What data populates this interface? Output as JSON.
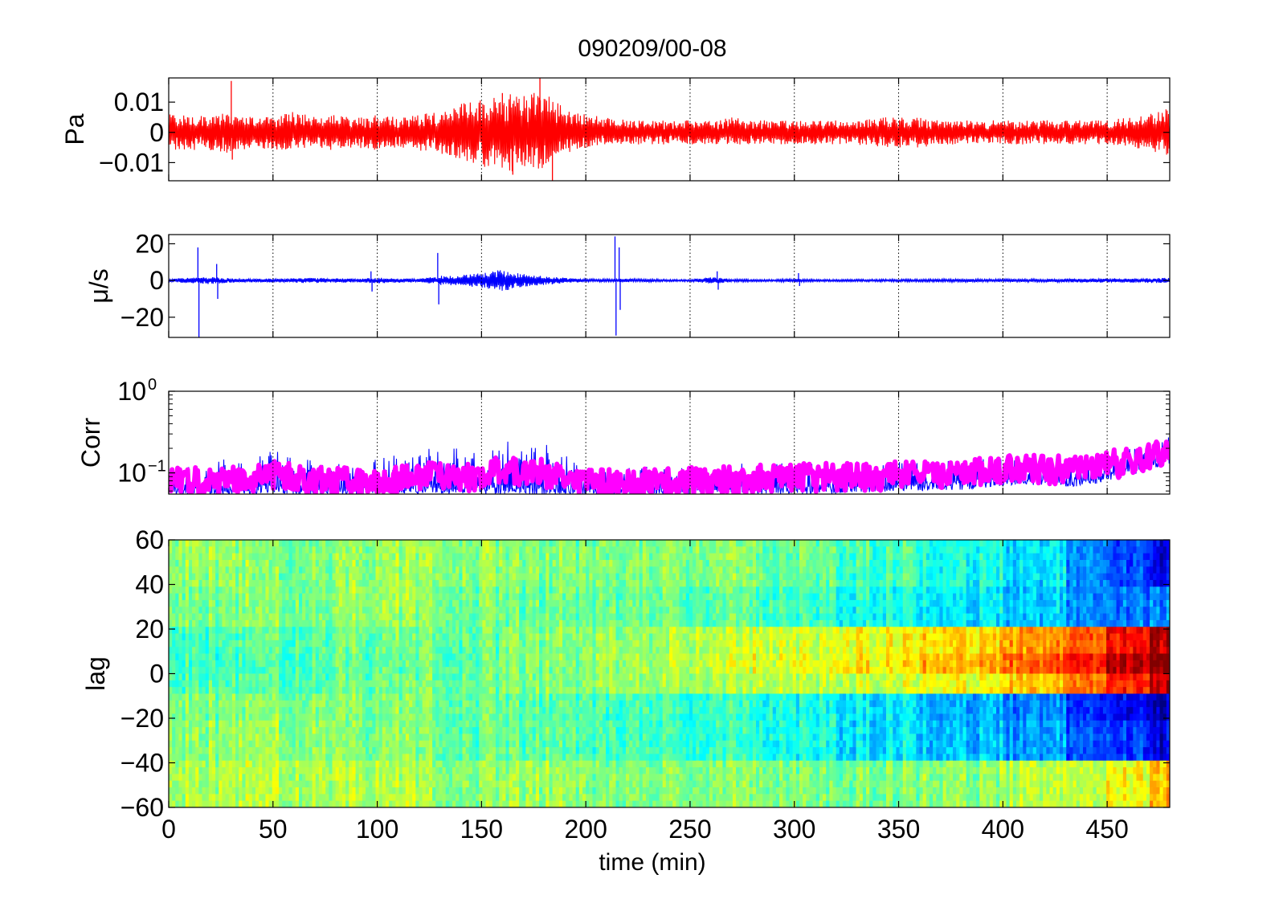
{
  "figure": {
    "title": "090209/00-08",
    "xlabel": "time (min)"
  },
  "chart_data": [
    {
      "type": "line",
      "ylabel": "Pa",
      "xlim": [
        0,
        480
      ],
      "ylim": [
        -0.016,
        0.018
      ],
      "xticks": [
        0,
        50,
        100,
        150,
        200,
        250,
        300,
        350,
        400,
        450
      ],
      "yticks": [
        {
          "value": 0.01,
          "label": "0.01"
        },
        {
          "value": 0,
          "label": "0"
        },
        {
          "value": -0.01,
          "label": "−0.01"
        }
      ],
      "grid": "x-dotted",
      "series": [
        {
          "color": "#ff0000",
          "x": [
            0,
            10,
            20,
            30,
            40,
            50,
            60,
            70,
            80,
            90,
            100,
            110,
            120,
            130,
            140,
            150,
            160,
            170,
            180,
            190,
            200,
            210,
            220,
            230,
            240,
            250,
            260,
            270,
            280,
            290,
            300,
            310,
            320,
            330,
            340,
            350,
            360,
            370,
            380,
            390,
            400,
            410,
            420,
            430,
            440,
            450,
            460,
            470,
            480
          ],
          "y_upper": [
            0.006,
            0.006,
            0.005,
            0.007,
            0.005,
            0.006,
            0.007,
            0.005,
            0.006,
            0.005,
            0.006,
            0.005,
            0.006,
            0.007,
            0.01,
            0.011,
            0.013,
            0.012,
            0.014,
            0.008,
            0.006,
            0.005,
            0.004,
            0.004,
            0.004,
            0.004,
            0.004,
            0.005,
            0.004,
            0.004,
            0.004,
            0.004,
            0.004,
            0.004,
            0.005,
            0.005,
            0.005,
            0.004,
            0.004,
            0.004,
            0.004,
            0.004,
            0.004,
            0.004,
            0.004,
            0.004,
            0.005,
            0.006,
            0.008
          ],
          "y_lower": [
            -0.006,
            -0.006,
            -0.006,
            -0.007,
            -0.005,
            -0.006,
            -0.006,
            -0.005,
            -0.006,
            -0.005,
            -0.006,
            -0.005,
            -0.006,
            -0.007,
            -0.009,
            -0.011,
            -0.014,
            -0.012,
            -0.012,
            -0.007,
            -0.005,
            -0.004,
            -0.004,
            -0.004,
            -0.004,
            -0.004,
            -0.004,
            -0.004,
            -0.004,
            -0.004,
            -0.004,
            -0.004,
            -0.004,
            -0.004,
            -0.005,
            -0.005,
            -0.005,
            -0.004,
            -0.004,
            -0.004,
            -0.004,
            -0.004,
            -0.004,
            -0.004,
            -0.004,
            -0.004,
            -0.005,
            -0.006,
            -0.008
          ],
          "spikes": [
            [
              30,
              0.017
            ],
            [
              30.5,
              -0.009
            ],
            [
              178,
              0.018
            ],
            [
              184,
              -0.016
            ],
            [
              165,
              -0.014
            ],
            [
              160,
              0.013
            ]
          ]
        }
      ]
    },
    {
      "type": "line",
      "ylabel": "μ/s",
      "xlim": [
        0,
        480
      ],
      "ylim": [
        -31,
        25
      ],
      "xticks": [
        0,
        50,
        100,
        150,
        200,
        250,
        300,
        350,
        400,
        450
      ],
      "yticks": [
        {
          "value": 20,
          "label": "20"
        },
        {
          "value": 0,
          "label": "0"
        },
        {
          "value": -20,
          "label": "−20"
        }
      ],
      "grid": "x-dotted",
      "series": [
        {
          "color": "#0000ff",
          "x": [
            0,
            10,
            20,
            30,
            40,
            50,
            60,
            70,
            80,
            90,
            100,
            110,
            120,
            130,
            140,
            150,
            160,
            170,
            180,
            190,
            200,
            210,
            220,
            230,
            240,
            250,
            260,
            270,
            280,
            290,
            300,
            310,
            320,
            330,
            340,
            350,
            360,
            370,
            380,
            390,
            400,
            410,
            420,
            430,
            440,
            450,
            460,
            470,
            480
          ],
          "y_upper": [
            1.0,
            1.5,
            2.0,
            1.2,
            1.0,
            1.0,
            1.2,
            1.5,
            1.2,
            1.0,
            1.5,
            1.2,
            1.0,
            2.5,
            3.0,
            4.0,
            6.0,
            3.5,
            2.5,
            1.5,
            0.8,
            0.8,
            1.0,
            0.8,
            0.6,
            0.6,
            2.0,
            0.8,
            0.6,
            0.6,
            1.0,
            0.6,
            0.6,
            0.6,
            0.7,
            0.7,
            0.7,
            0.8,
            0.8,
            0.8,
            0.8,
            0.8,
            0.9,
            1.0,
            1.1,
            1.2,
            1.2,
            1.3,
            1.5
          ],
          "y_lower": [
            -1.0,
            -1.5,
            -2.0,
            -1.2,
            -1.0,
            -1.0,
            -1.2,
            -1.5,
            -1.2,
            -1.0,
            -1.5,
            -1.2,
            -1.0,
            -2.5,
            -3.0,
            -4.0,
            -6.0,
            -3.5,
            -2.5,
            -1.5,
            -0.8,
            -0.8,
            -1.0,
            -0.8,
            -0.6,
            -0.6,
            -2.0,
            -0.8,
            -0.6,
            -0.6,
            -1.0,
            -0.6,
            -0.6,
            -0.6,
            -0.7,
            -0.7,
            -0.7,
            -0.8,
            -0.8,
            -0.8,
            -0.8,
            -0.8,
            -0.9,
            -1.0,
            -1.1,
            -1.2,
            -1.2,
            -1.3,
            -1.5
          ],
          "spikes": [
            [
              14,
              18
            ],
            [
              14.5,
              -31
            ],
            [
              23,
              9
            ],
            [
              23.5,
              -10
            ],
            [
              129,
              15
            ],
            [
              129.5,
              -13
            ],
            [
              214,
              24
            ],
            [
              214.5,
              -30
            ],
            [
              216,
              18
            ],
            [
              216.5,
              -16
            ],
            [
              97,
              5
            ],
            [
              97.5,
              -6
            ],
            [
              263,
              5
            ],
            [
              263.5,
              -5
            ],
            [
              302,
              4
            ],
            [
              302.5,
              -3
            ]
          ]
        }
      ]
    },
    {
      "type": "line",
      "ylabel": "Corr",
      "yscale": "log",
      "xlim": [
        0,
        480
      ],
      "ylim": [
        0.055,
        1.0
      ],
      "xticks": [
        0,
        50,
        100,
        150,
        200,
        250,
        300,
        350,
        400,
        450
      ],
      "yticks": [
        {
          "value": 1.0,
          "label": "10",
          "exp": "0"
        },
        {
          "value": 0.1,
          "label": "10",
          "exp": "−1"
        }
      ],
      "grid": "x-dotted",
      "series": [
        {
          "name": "",
          "color": "#0000ff",
          "x": [
            0,
            10,
            20,
            30,
            40,
            50,
            60,
            70,
            80,
            90,
            100,
            110,
            120,
            130,
            140,
            150,
            160,
            170,
            180,
            190,
            200,
            210,
            220,
            230,
            240,
            250,
            260,
            270,
            280,
            290,
            300,
            310,
            320,
            330,
            340,
            350,
            360,
            370,
            380,
            390,
            400,
            410,
            420,
            430,
            440,
            450,
            460,
            470,
            480
          ],
          "y_upper": [
            0.12,
            0.15,
            0.13,
            0.16,
            0.15,
            0.2,
            0.17,
            0.14,
            0.13,
            0.13,
            0.15,
            0.17,
            0.18,
            0.22,
            0.2,
            0.17,
            0.28,
            0.2,
            0.24,
            0.17,
            0.12,
            0.11,
            0.12,
            0.12,
            0.11,
            0.12,
            0.12,
            0.13,
            0.13,
            0.13,
            0.14,
            0.14,
            0.13,
            0.14,
            0.14,
            0.14,
            0.14,
            0.14,
            0.14,
            0.15,
            0.16,
            0.17,
            0.16,
            0.15,
            0.15,
            0.18,
            0.2,
            0.23,
            0.28
          ],
          "y_lower": [
            0.055,
            0.055,
            0.055,
            0.055,
            0.055,
            0.055,
            0.055,
            0.055,
            0.055,
            0.055,
            0.055,
            0.055,
            0.055,
            0.055,
            0.055,
            0.055,
            0.055,
            0.055,
            0.055,
            0.055,
            0.055,
            0.055,
            0.055,
            0.055,
            0.055,
            0.055,
            0.055,
            0.055,
            0.055,
            0.055,
            0.055,
            0.055,
            0.055,
            0.058,
            0.058,
            0.06,
            0.06,
            0.062,
            0.062,
            0.065,
            0.07,
            0.072,
            0.07,
            0.068,
            0.068,
            0.08,
            0.09,
            0.11,
            0.13
          ]
        },
        {
          "name": "",
          "color": "#ff00ff",
          "x": [
            0,
            10,
            20,
            30,
            40,
            50,
            60,
            70,
            80,
            90,
            100,
            110,
            120,
            130,
            140,
            150,
            160,
            170,
            180,
            190,
            200,
            210,
            220,
            230,
            240,
            250,
            260,
            270,
            280,
            290,
            300,
            310,
            320,
            330,
            340,
            350,
            360,
            370,
            380,
            390,
            400,
            410,
            420,
            430,
            440,
            450,
            460,
            470,
            480
          ],
          "y": [
            0.075,
            0.08,
            0.078,
            0.08,
            0.085,
            0.095,
            0.085,
            0.08,
            0.078,
            0.078,
            0.08,
            0.085,
            0.088,
            0.095,
            0.09,
            0.09,
            0.11,
            0.095,
            0.1,
            0.085,
            0.075,
            0.074,
            0.075,
            0.076,
            0.076,
            0.078,
            0.08,
            0.082,
            0.084,
            0.086,
            0.088,
            0.088,
            0.088,
            0.09,
            0.09,
            0.092,
            0.094,
            0.096,
            0.098,
            0.102,
            0.11,
            0.115,
            0.11,
            0.108,
            0.11,
            0.125,
            0.135,
            0.15,
            0.18
          ]
        }
      ]
    },
    {
      "type": "heatmap",
      "ylabel": "lag",
      "xlim": [
        0,
        480
      ],
      "ylim": [
        -60,
        60
      ],
      "xticks": [
        {
          "value": 0,
          "label": "0"
        },
        {
          "value": 50,
          "label": "50"
        },
        {
          "value": 100,
          "label": "100"
        },
        {
          "value": 150,
          "label": "150"
        },
        {
          "value": 200,
          "label": "200"
        },
        {
          "value": 250,
          "label": "250"
        },
        {
          "value": 300,
          "label": "300"
        },
        {
          "value": 350,
          "label": "350"
        },
        {
          "value": 400,
          "label": "400"
        },
        {
          "value": 450,
          "label": "450"
        }
      ],
      "yticks": [
        {
          "value": 60,
          "label": "60"
        },
        {
          "value": 40,
          "label": "40"
        },
        {
          "value": 20,
          "label": "20"
        },
        {
          "value": 0,
          "label": "0"
        },
        {
          "value": -20,
          "label": "−20"
        },
        {
          "value": -40,
          "label": "−40"
        },
        {
          "value": -60,
          "label": "−60"
        }
      ],
      "colormap": "jet",
      "time_bins": [
        0,
        40,
        80,
        120,
        160,
        200,
        240,
        280,
        320,
        360,
        400,
        430,
        450,
        470,
        480
      ],
      "lag_bins": [
        60,
        40,
        20,
        10,
        0,
        -10,
        -20,
        -40,
        -60
      ],
      "values": [
        [
          0.52,
          0.5,
          0.52,
          0.52,
          0.5,
          0.5,
          0.5,
          0.48,
          0.45,
          0.4,
          0.35,
          0.28,
          0.2,
          0.1
        ],
        [
          0.5,
          0.5,
          0.52,
          0.5,
          0.48,
          0.48,
          0.46,
          0.44,
          0.4,
          0.36,
          0.32,
          0.28,
          0.25,
          0.25
        ],
        [
          0.45,
          0.46,
          0.48,
          0.48,
          0.5,
          0.52,
          0.55,
          0.58,
          0.62,
          0.66,
          0.72,
          0.8,
          0.88,
          0.95
        ],
        [
          0.44,
          0.45,
          0.47,
          0.48,
          0.5,
          0.53,
          0.56,
          0.6,
          0.64,
          0.7,
          0.78,
          0.88,
          0.95,
          1.0
        ],
        [
          0.45,
          0.46,
          0.48,
          0.48,
          0.5,
          0.52,
          0.54,
          0.56,
          0.58,
          0.62,
          0.68,
          0.78,
          0.85,
          0.92
        ],
        [
          0.5,
          0.5,
          0.5,
          0.48,
          0.46,
          0.44,
          0.42,
          0.4,
          0.36,
          0.3,
          0.25,
          0.18,
          0.12,
          0.05
        ],
        [
          0.52,
          0.52,
          0.5,
          0.48,
          0.46,
          0.44,
          0.42,
          0.4,
          0.36,
          0.32,
          0.28,
          0.22,
          0.18,
          0.1
        ],
        [
          0.55,
          0.55,
          0.55,
          0.52,
          0.52,
          0.5,
          0.5,
          0.5,
          0.5,
          0.52,
          0.55,
          0.58,
          0.62,
          0.68
        ]
      ]
    }
  ]
}
